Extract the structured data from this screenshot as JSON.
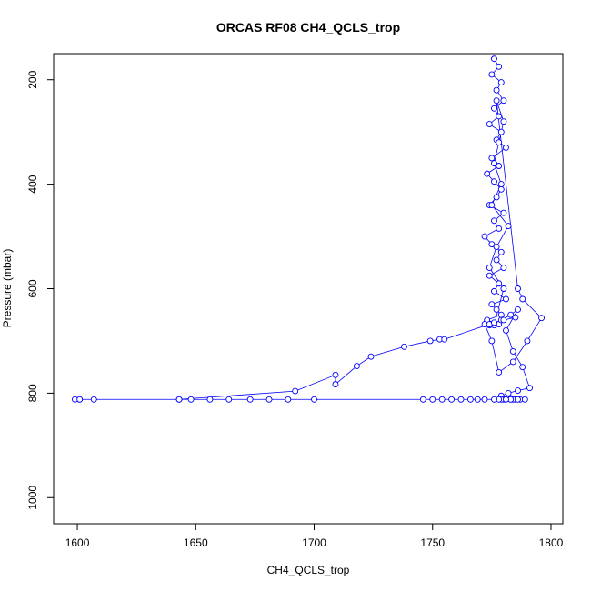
{
  "chart_data": {
    "type": "scatter",
    "title": "ORCAS RF08 CH4_QCLS_trop",
    "xlabel": "CH4_QCLS_trop",
    "ylabel": "Pressure (mbar)",
    "xlim": [
      1590,
      1805
    ],
    "ylim": [
      1050,
      150
    ],
    "x_ticks": [
      1600,
      1650,
      1700,
      1750,
      1800
    ],
    "y_ticks": [
      200,
      400,
      600,
      800,
      1000
    ],
    "y_reversed": true,
    "grid": false,
    "connected": true,
    "marker": "open-circle",
    "color": "#0000ff",
    "series": [
      {
        "x": [
          1776,
          1778,
          1775,
          1779,
          1777,
          1780,
          1776,
          1778,
          1774,
          1779,
          1777,
          1781,
          1775,
          1778,
          1773,
          1776,
          1779,
          1777,
          1774,
          1780,
          1776,
          1778,
          1772,
          1775,
          1779,
          1777,
          1780,
          1774,
          1778,
          1776,
          1781,
          1775,
          1777,
          1779,
          1773,
          1778,
          1776,
          1780,
          1774,
          1777,
          1782,
          1775,
          1779,
          1776,
          1778,
          1780,
          1777,
          1786,
          1788,
          1796,
          1790,
          1784,
          1778,
          1775,
          1772,
          1774,
          1779,
          1783,
          1786,
          1781,
          1784,
          1788,
          1791,
          1786,
          1782,
          1779,
          1783,
          1785,
          1781,
          1784,
          1787,
          1789,
          1786,
          1783,
          1780,
          1779,
          1783,
          1781,
          1778,
          1776,
          1772,
          1769,
          1766,
          1762,
          1758,
          1754,
          1750,
          1746,
          1700,
          1689,
          1681,
          1673,
          1664,
          1656,
          1648,
          1643,
          1607,
          1601,
          1599,
          1601,
          1643,
          1692,
          1709,
          1709,
          1718,
          1724,
          1738,
          1749,
          1753,
          1755,
          1774,
          1776,
          1780,
          1785
        ],
        "y": [
          160,
          175,
          190,
          205,
          220,
          240,
          255,
          270,
          285,
          300,
          315,
          330,
          350,
          365,
          380,
          395,
          410,
          425,
          440,
          455,
          470,
          485,
          500,
          515,
          530,
          545,
          560,
          575,
          590,
          605,
          620,
          630,
          640,
          650,
          660,
          668,
          670,
          600,
          560,
          520,
          480,
          440,
          400,
          360,
          320,
          280,
          240,
          600,
          620,
          656,
          700,
          740,
          760,
          700,
          668,
          670,
          660,
          650,
          640,
          680,
          720,
          750,
          790,
          795,
          800,
          805,
          810,
          812,
          812,
          812,
          812,
          812,
          812,
          812,
          812,
          812,
          812,
          812,
          812,
          812,
          812,
          812,
          812,
          812,
          812,
          812,
          812,
          812,
          812,
          812,
          812,
          812,
          812,
          812,
          812,
          812,
          812,
          812,
          812,
          812,
          812,
          796,
          765,
          783,
          748,
          730,
          711,
          700,
          697,
          697,
          668,
          665,
          660,
          655
        ]
      }
    ]
  }
}
